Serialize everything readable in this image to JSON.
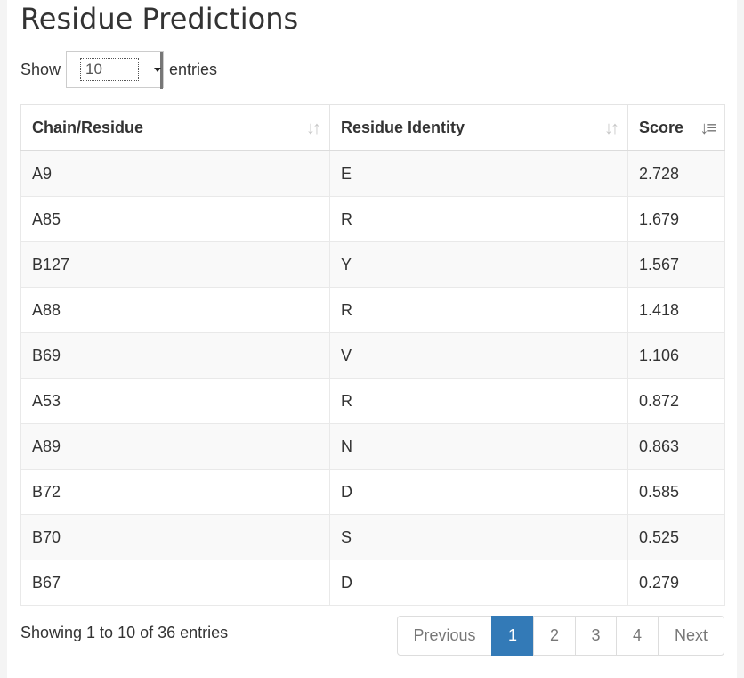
{
  "title": "Residue Predictions",
  "length": {
    "show_label": "Show",
    "selected": "10",
    "entries_label": "entries"
  },
  "table": {
    "columns": [
      "Chain/Residue",
      "Residue Identity",
      "Score"
    ],
    "rows": [
      [
        "A9",
        "E",
        "2.728"
      ],
      [
        "A85",
        "R",
        "1.679"
      ],
      [
        "B127",
        "Y",
        "1.567"
      ],
      [
        "A88",
        "R",
        "1.418"
      ],
      [
        "B69",
        "V",
        "1.106"
      ],
      [
        "A53",
        "R",
        "0.872"
      ],
      [
        "A89",
        "N",
        "0.863"
      ],
      [
        "B72",
        "D",
        "0.585"
      ],
      [
        "B70",
        "S",
        "0.525"
      ],
      [
        "B67",
        "D",
        "0.279"
      ]
    ]
  },
  "info": "Showing 1 to 10 of 36 entries",
  "pagination": {
    "previous": "Previous",
    "pages": [
      "1",
      "2",
      "3",
      "4"
    ],
    "active_page": "1",
    "next": "Next"
  },
  "colors": {
    "accent": "#337ab7"
  },
  "icons": {
    "sort_inactive": "sort-both-icon",
    "sort_active": "sort-desc-icon"
  }
}
